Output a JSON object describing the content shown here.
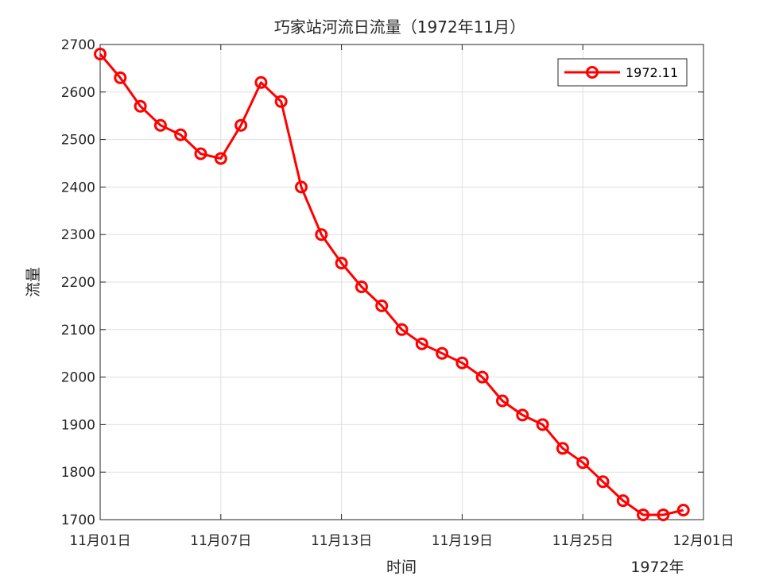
{
  "chart_data": {
    "type": "line",
    "title": "巧家站河流日流量（1972年11月）",
    "xlabel": "时间",
    "ylabel": "流量",
    "x_secondary_label": "1972年",
    "x_unit": "day",
    "x_range": [
      "1972-11-01",
      "1972-12-01"
    ],
    "xticks": [
      "11月01日",
      "11月07日",
      "11月13日",
      "11月19日",
      "11月25日",
      "12月01日"
    ],
    "ylim": [
      1700,
      2700
    ],
    "yticks": [
      1700,
      1800,
      1900,
      2000,
      2100,
      2200,
      2300,
      2400,
      2500,
      2600,
      2700
    ],
    "grid": true,
    "legend_position": "top-right",
    "series": [
      {
        "name": "1972.11",
        "color": "#ff0000",
        "marker": "circle",
        "x": [
          "1972-11-01",
          "1972-11-02",
          "1972-11-03",
          "1972-11-04",
          "1972-11-05",
          "1972-11-06",
          "1972-11-07",
          "1972-11-08",
          "1972-11-09",
          "1972-11-10",
          "1972-11-11",
          "1972-11-12",
          "1972-11-13",
          "1972-11-14",
          "1972-11-15",
          "1972-11-16",
          "1972-11-17",
          "1972-11-18",
          "1972-11-19",
          "1972-11-20",
          "1972-11-21",
          "1972-11-22",
          "1972-11-23",
          "1972-11-24",
          "1972-11-25",
          "1972-11-26",
          "1972-11-27",
          "1972-11-28",
          "1972-11-29",
          "1972-11-30"
        ],
        "values": [
          2680,
          2630,
          2570,
          2530,
          2510,
          2470,
          2460,
          2530,
          2620,
          2580,
          2400,
          2300,
          2240,
          2190,
          2150,
          2100,
          2070,
          2050,
          2030,
          2000,
          1950,
          1920,
          1900,
          1850,
          1820,
          1780,
          1740,
          1710,
          1710,
          1720
        ]
      }
    ]
  }
}
